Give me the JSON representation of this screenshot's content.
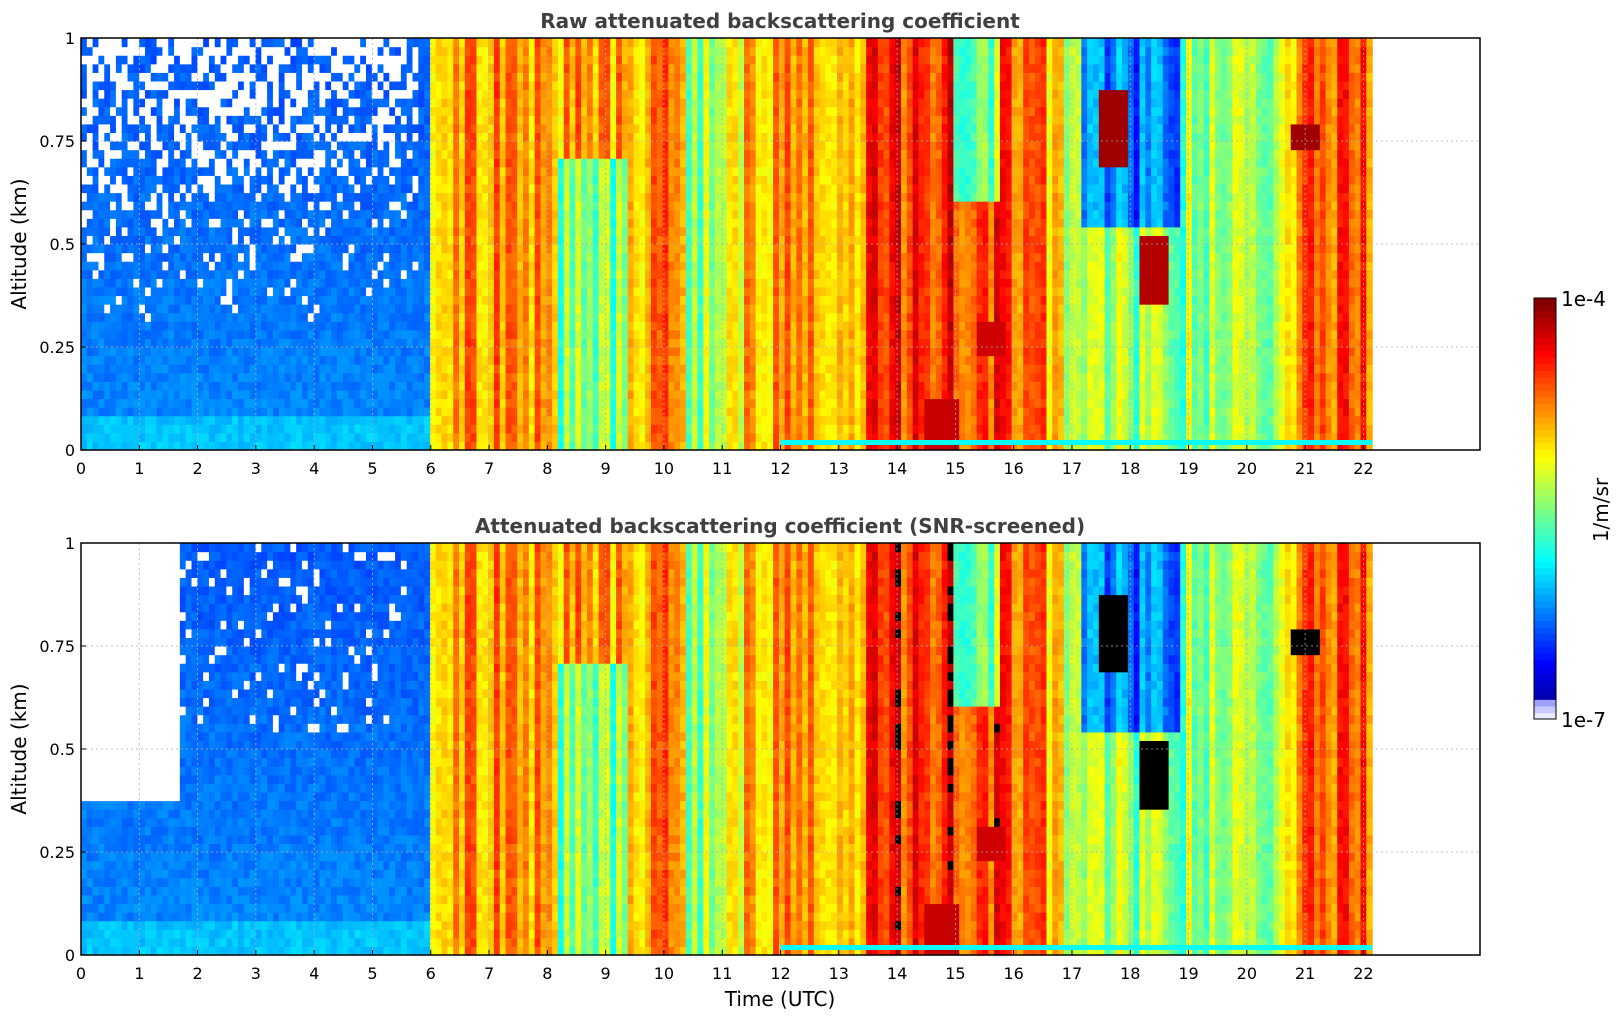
{
  "chart_data": [
    {
      "type": "heatmap",
      "title": "Raw attenuated backscattering coefficient",
      "xlabel": "",
      "ylabel": "Altitude (km)",
      "xlim": [
        0,
        24
      ],
      "ylim": [
        0,
        1
      ],
      "x_ticks": [
        "0",
        "1",
        "2",
        "3",
        "4",
        "5",
        "6",
        "7",
        "8",
        "9",
        "10",
        "11",
        "12",
        "13",
        "14",
        "15",
        "16",
        "17",
        "18",
        "19",
        "20",
        "21",
        "22"
      ],
      "y_ticks": [
        "0",
        "0.25",
        "0.5",
        "0.75",
        "1"
      ],
      "y_tick_values": [
        0,
        0.25,
        0.5,
        0.75,
        1
      ],
      "grid": true,
      "data_end_time": 22.15,
      "color_scale": "log",
      "screened": false
    },
    {
      "type": "heatmap",
      "title": "Attenuated backscattering coefficient (SNR-screened)",
      "xlabel": "Time (UTC)",
      "ylabel": "Altitude (km)",
      "xlim": [
        0,
        24
      ],
      "ylim": [
        0,
        1
      ],
      "x_ticks": [
        "0",
        "1",
        "2",
        "3",
        "4",
        "5",
        "6",
        "7",
        "8",
        "9",
        "10",
        "11",
        "12",
        "13",
        "14",
        "15",
        "16",
        "17",
        "18",
        "19",
        "20",
        "21",
        "22"
      ],
      "y_ticks": [
        "0",
        "0.25",
        "0.5",
        "0.75",
        "1"
      ],
      "y_tick_values": [
        0,
        0.25,
        0.5,
        0.75,
        1
      ],
      "grid": true,
      "data_end_time": 22.15,
      "color_scale": "log",
      "screened": true
    }
  ],
  "colorbar": {
    "label": "1/m/sr",
    "max_label": "1e-4",
    "min_label": "1e-7",
    "range": [
      1e-07,
      0.0001
    ],
    "colormap": "jet"
  },
  "colors": {
    "title_text": "#404040",
    "axis": "#000000",
    "grid": "#b0b0b0"
  }
}
